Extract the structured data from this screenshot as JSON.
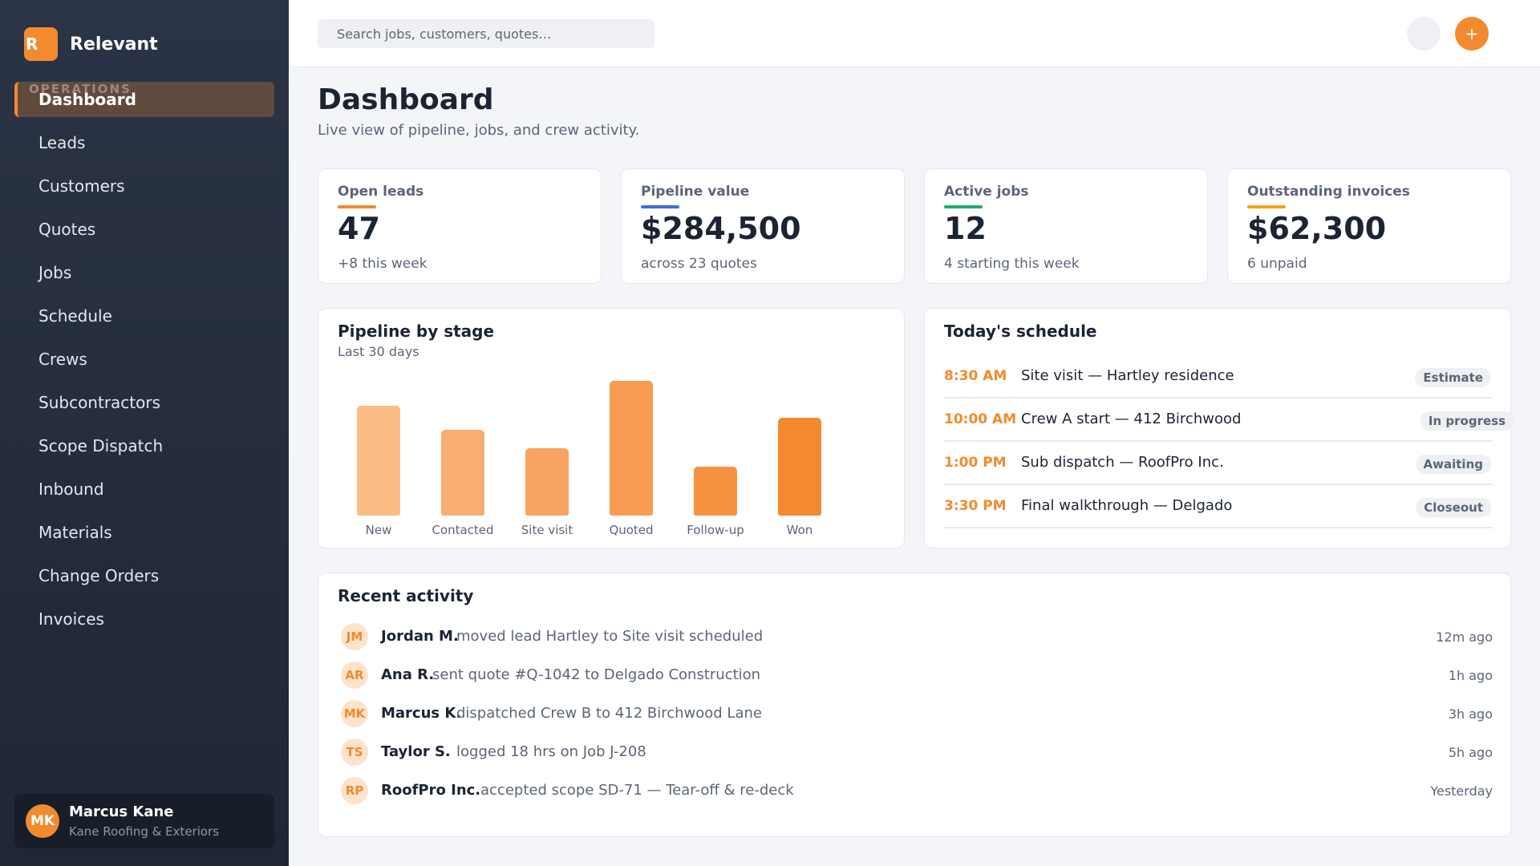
{
  "app": {
    "logo_letter": "R",
    "name": "Relevant"
  },
  "sidebar": {
    "section": "OPERATIONS",
    "items": [
      {
        "label": "Dashboard",
        "active": true
      },
      {
        "label": "Leads"
      },
      {
        "label": "Customers"
      },
      {
        "label": "Quotes"
      },
      {
        "label": "Jobs"
      },
      {
        "label": "Schedule"
      },
      {
        "label": "Crews"
      },
      {
        "label": "Subcontractors"
      },
      {
        "label": "Scope Dispatch"
      },
      {
        "label": "Inbound"
      },
      {
        "label": "Materials"
      },
      {
        "label": "Change Orders"
      },
      {
        "label": "Invoices"
      }
    ],
    "user": {
      "initials": "MK",
      "name": "Marcus Kane",
      "org": "Kane Roofing & Exteriors"
    }
  },
  "topbar": {
    "search_placeholder": "Search jobs, customers, quotes…",
    "plus_label": "+"
  },
  "page": {
    "title": "Dashboard",
    "subtitle": "Live view of pipeline, jobs, and crew activity."
  },
  "stats": [
    {
      "label": "Open leads",
      "value": "47",
      "note": "+8 this week",
      "color": "#f28a2e"
    },
    {
      "label": "Pipeline value",
      "value": "$284,500",
      "note": "across 23 quotes",
      "color": "#3b6fe0"
    },
    {
      "label": "Active jobs",
      "value": "12",
      "note": "4 starting this week",
      "color": "#1fae6e"
    },
    {
      "label": "Outstanding invoices",
      "value": "$62,300",
      "note": "6 unpaid",
      "color": "#f2a413"
    }
  ],
  "pipeline": {
    "title": "Pipeline by stage",
    "subtitle": "Last 30 days"
  },
  "chart_data": {
    "type": "bar",
    "title": "Pipeline by stage",
    "subtitle": "Last 30 days",
    "categories": [
      "New",
      "Contacted",
      "Site visit",
      "Quoted",
      "Follow-up",
      "Won"
    ],
    "values": [
      18,
      14,
      11,
      22,
      8,
      16
    ],
    "ylim": [
      0,
      22
    ],
    "grid": false,
    "colors": [
      "#fbbd86",
      "#f9ad72",
      "#f8a462",
      "#f79c52",
      "#f6913f",
      "#f48a30"
    ]
  },
  "schedule": {
    "title": "Today's schedule",
    "items": [
      {
        "time": "8:30 AM",
        "title": "Site visit — Hartley residence",
        "tag": "Estimate"
      },
      {
        "time": "10:00 AM",
        "title": "Crew A start — 412 Birchwood",
        "tag": "In progress"
      },
      {
        "time": "1:00 PM",
        "title": "Sub dispatch — RoofPro Inc.",
        "tag": "Awaiting"
      },
      {
        "time": "3:30 PM",
        "title": "Final walkthrough — Delgado",
        "tag": "Closeout"
      }
    ]
  },
  "activity": {
    "title": "Recent activity",
    "items": [
      {
        "initials": "JM",
        "name": "Jordan M.",
        "text": "moved lead Hartley to Site visit scheduled",
        "time": "12m ago"
      },
      {
        "initials": "AR",
        "name": "Ana R.",
        "text": "sent quote #Q-1042 to Delgado Construction",
        "time": "1h ago"
      },
      {
        "initials": "MK",
        "name": "Marcus K.",
        "text": "dispatched Crew B to 412 Birchwood Lane",
        "time": "3h ago"
      },
      {
        "initials": "TS",
        "name": "Taylor S.",
        "text": "logged 18 hrs on Job J-208",
        "time": "5h ago"
      },
      {
        "initials": "RP",
        "name": "RoofPro Inc.",
        "text": "accepted scope SD-71 — Tear-off & re-deck",
        "time": "Yesterday"
      }
    ]
  }
}
